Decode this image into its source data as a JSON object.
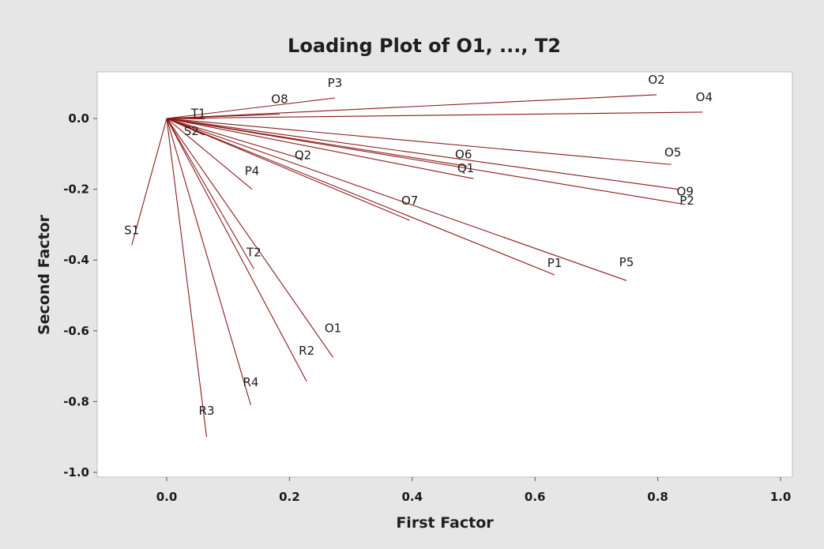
{
  "chart_data": {
    "type": "line",
    "title": "Loading Plot of O1, ..., T2",
    "xlabel": "First Factor",
    "ylabel": "Second Factor",
    "xlim": [
      -0.12,
      1.02
    ],
    "ylim": [
      -1.02,
      0.12
    ],
    "xticks": [
      0.0,
      0.2,
      0.4,
      0.6,
      0.8,
      1.0
    ],
    "xtick_labels": [
      "0.0",
      "0.2",
      "0.4",
      "0.6",
      "0.8",
      "1.0"
    ],
    "yticks": [
      0.0,
      -0.2,
      -0.4,
      -0.6,
      -0.8,
      -1.0
    ],
    "ytick_labels": [
      "0.0",
      "-0.2",
      "-0.4",
      "-0.6",
      "-0.8",
      "-1.0"
    ],
    "grid": false,
    "legend": "none",
    "line_color": "#8b1a1a",
    "background_color": "#e6e6e6",
    "plot_area_color": "#ffffff",
    "points": [
      {
        "name": "O2",
        "x": 0.798,
        "y": 0.067
      },
      {
        "name": "O4",
        "x": 0.873,
        "y": 0.018
      },
      {
        "name": "P3",
        "x": 0.274,
        "y": 0.058
      },
      {
        "name": "O8",
        "x": 0.184,
        "y": 0.012
      },
      {
        "name": "T1",
        "x": 0.062,
        "y": -0.001
      },
      {
        "name": "S2",
        "x": 0.061,
        "y": -0.047
      },
      {
        "name": "Q2",
        "x": 0.222,
        "y": -0.115
      },
      {
        "name": "O6",
        "x": 0.49,
        "y": -0.135
      },
      {
        "name": "Q1",
        "x": 0.5,
        "y": -0.17
      },
      {
        "name": "O5",
        "x": 0.822,
        "y": -0.13
      },
      {
        "name": "O9",
        "x": 0.833,
        "y": -0.2
      },
      {
        "name": "P2",
        "x": 0.845,
        "y": -0.243
      },
      {
        "name": "P4",
        "x": 0.139,
        "y": -0.2
      },
      {
        "name": "O7",
        "x": 0.396,
        "y": -0.288
      },
      {
        "name": "P1",
        "x": 0.632,
        "y": -0.442
      },
      {
        "name": "P5",
        "x": 0.749,
        "y": -0.458
      },
      {
        "name": "S1",
        "x": -0.057,
        "y": -0.358
      },
      {
        "name": "T2",
        "x": 0.142,
        "y": -0.425
      },
      {
        "name": "O1",
        "x": 0.271,
        "y": -0.675
      },
      {
        "name": "R2",
        "x": 0.228,
        "y": -0.743
      },
      {
        "name": "R4",
        "x": 0.137,
        "y": -0.81
      },
      {
        "name": "R3",
        "x": 0.065,
        "y": -0.9
      }
    ]
  }
}
